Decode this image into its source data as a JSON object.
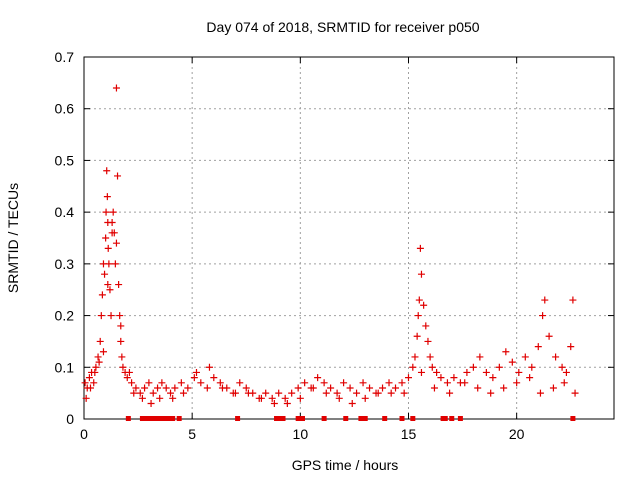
{
  "chart_data": {
    "type": "scatter",
    "title": "Day 074 of 2018, SRMTID for receiver p050",
    "xlabel": "GPS time / hours",
    "ylabel": "SRMTID / TECUs",
    "xlim": [
      0,
      24.5
    ],
    "ylim": [
      0,
      0.7
    ],
    "xticks": [
      0,
      5,
      10,
      15,
      20
    ],
    "xtick_labels": [
      "0",
      "5",
      "10",
      "15",
      "20"
    ],
    "yticks": [
      0,
      0.1,
      0.2,
      0.3,
      0.4,
      0.5,
      0.6,
      0.7
    ],
    "ytick_labels": [
      "0",
      "0.1",
      "0.2",
      "0.3",
      "0.4",
      "0.5",
      "0.6",
      "0.7"
    ],
    "grid": true,
    "marker": "+",
    "series": [
      {
        "name": "SRMTID",
        "color": "#e00000",
        "x": [
          0.05,
          0.15,
          0.25,
          0.35,
          0.45,
          0.55,
          0.65,
          0.75,
          0.8,
          0.85,
          0.9,
          0.95,
          1.0,
          1.02,
          1.05,
          1.08,
          1.1,
          1.12,
          1.15,
          1.2,
          1.25,
          1.3,
          1.35,
          1.4,
          1.45,
          1.5,
          1.55,
          1.6,
          1.65,
          1.7,
          1.75,
          1.8,
          1.9,
          2.0,
          2.1,
          2.2,
          2.4,
          2.6,
          2.8,
          3.0,
          3.2,
          3.4,
          3.6,
          3.8,
          4.0,
          4.2,
          4.5,
          4.8,
          5.1,
          5.4,
          5.7,
          6.0,
          6.3,
          6.6,
          6.9,
          7.2,
          7.5,
          7.8,
          8.1,
          8.4,
          8.7,
          9.0,
          9.3,
          9.6,
          9.9,
          10.2,
          10.5,
          10.8,
          11.1,
          11.4,
          11.7,
          12.0,
          12.3,
          12.6,
          12.9,
          13.2,
          13.5,
          13.8,
          14.1,
          14.4,
          14.7,
          15.0,
          15.2,
          15.3,
          15.4,
          15.45,
          15.5,
          15.55,
          15.6,
          15.7,
          15.8,
          15.9,
          16.0,
          16.1,
          16.3,
          16.5,
          16.8,
          17.1,
          17.4,
          17.7,
          18.0,
          18.3,
          18.6,
          18.9,
          19.2,
          19.5,
          19.8,
          20.1,
          20.4,
          20.7,
          21.0,
          21.2,
          21.3,
          21.5,
          21.8,
          22.1,
          22.3,
          22.5,
          22.6,
          0.1,
          0.3,
          0.5,
          0.7,
          0.9,
          1.1,
          1.3,
          1.5,
          1.7,
          2.3,
          2.7,
          3.1,
          3.5,
          4.1,
          4.6,
          5.2,
          5.8,
          6.4,
          7.0,
          7.6,
          8.2,
          8.8,
          9.4,
          10.0,
          10.6,
          11.2,
          11.8,
          12.4,
          13.0,
          13.6,
          14.2,
          14.8,
          15.6,
          16.2,
          16.9,
          17.6,
          18.2,
          18.8,
          19.4,
          20.0,
          20.6,
          21.1,
          21.7,
          22.2,
          22.7
        ],
        "y": [
          0.07,
          0.06,
          0.08,
          0.09,
          0.07,
          0.1,
          0.12,
          0.15,
          0.2,
          0.24,
          0.3,
          0.28,
          0.35,
          0.4,
          0.48,
          0.43,
          0.38,
          0.33,
          0.3,
          0.25,
          0.2,
          0.38,
          0.4,
          0.36,
          0.3,
          0.64,
          0.47,
          0.26,
          0.2,
          0.15,
          0.12,
          0.1,
          0.09,
          0.08,
          0.09,
          0.07,
          0.06,
          0.05,
          0.06,
          0.07,
          0.05,
          0.06,
          0.07,
          0.06,
          0.05,
          0.06,
          0.07,
          0.06,
          0.08,
          0.07,
          0.06,
          0.08,
          0.07,
          0.06,
          0.05,
          0.07,
          0.06,
          0.05,
          0.04,
          0.05,
          0.04,
          0.05,
          0.04,
          0.05,
          0.06,
          0.07,
          0.06,
          0.08,
          0.07,
          0.06,
          0.05,
          0.07,
          0.06,
          0.05,
          0.07,
          0.06,
          0.05,
          0.06,
          0.07,
          0.06,
          0.07,
          0.08,
          0.1,
          0.12,
          0.16,
          0.2,
          0.23,
          0.33,
          0.28,
          0.22,
          0.18,
          0.15,
          0.12,
          0.1,
          0.09,
          0.08,
          0.07,
          0.08,
          0.07,
          0.09,
          0.1,
          0.12,
          0.09,
          0.08,
          0.1,
          0.13,
          0.11,
          0.09,
          0.12,
          0.1,
          0.14,
          0.2,
          0.23,
          0.16,
          0.12,
          0.1,
          0.09,
          0.14,
          0.23,
          0.04,
          0.06,
          0.09,
          0.11,
          0.13,
          0.26,
          0.36,
          0.34,
          0.18,
          0.05,
          0.04,
          0.03,
          0.04,
          0.04,
          0.05,
          0.09,
          0.1,
          0.06,
          0.05,
          0.05,
          0.04,
          0.03,
          0.03,
          0.04,
          0.06,
          0.05,
          0.04,
          0.03,
          0.04,
          0.05,
          0.05,
          0.05,
          0.09,
          0.06,
          0.05,
          0.07,
          0.06,
          0.05,
          0.06,
          0.07,
          0.08,
          0.05,
          0.06,
          0.07,
          0.05
        ],
        "zero_markers_x": [
          2.05,
          2.7,
          2.9,
          3.1,
          3.3,
          3.5,
          3.7,
          3.9,
          4.1,
          4.4,
          7.1,
          8.9,
          9.0,
          9.2,
          9.9,
          10.1,
          11.1,
          12.1,
          12.8,
          12.9,
          13.0,
          13.9,
          14.7,
          15.2,
          16.6,
          16.7,
          17.0,
          17.4,
          22.6
        ]
      }
    ]
  }
}
